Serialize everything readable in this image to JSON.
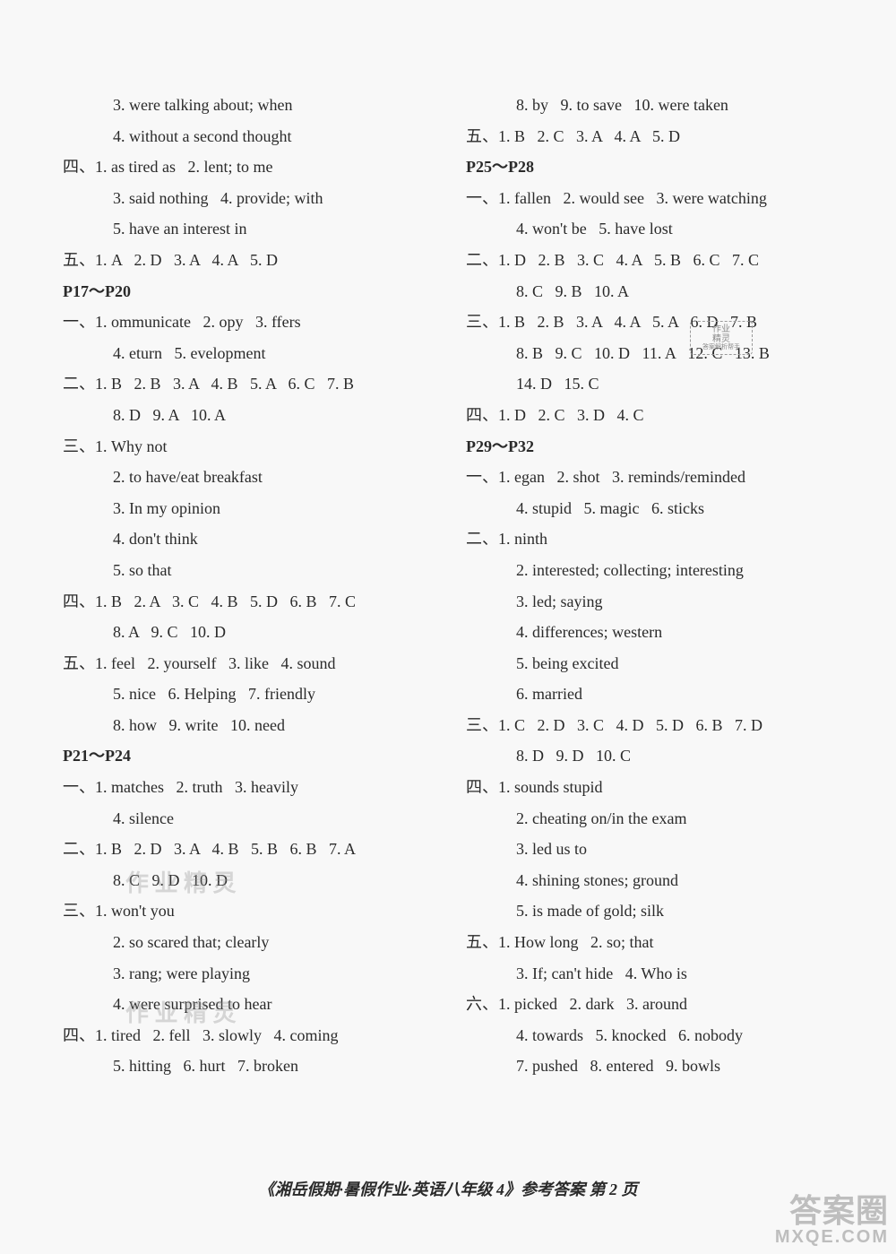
{
  "leftColumn": [
    {
      "text": "3. were talking about; when",
      "cls": "indent2"
    },
    {
      "text": "4. without a second thought",
      "cls": "indent2"
    },
    {
      "text": "四、1. as tired as   2. lent; to me",
      "cls": ""
    },
    {
      "text": "3. said nothing   4. provide; with",
      "cls": "indent2"
    },
    {
      "text": "5. have an interest in",
      "cls": "indent2"
    },
    {
      "text": "五、1. A   2. D   3. A   4. A   5. D",
      "cls": ""
    },
    {
      "text": "P17～P20",
      "cls": "bold"
    },
    {
      "text": "一、1. ommunicate   2. opy   3. ffers",
      "cls": ""
    },
    {
      "text": "4. eturn   5. evelopment",
      "cls": "indent2"
    },
    {
      "text": "二、1. B   2. B   3. A   4. B   5. A   6. C   7. B",
      "cls": ""
    },
    {
      "text": "8. D   9. A   10. A",
      "cls": "indent2"
    },
    {
      "text": "三、1. Why not",
      "cls": ""
    },
    {
      "text": "2. to have/eat breakfast",
      "cls": "indent2"
    },
    {
      "text": "3. In my opinion",
      "cls": "indent2"
    },
    {
      "text": "4. don't think",
      "cls": "indent2"
    },
    {
      "text": "5. so that",
      "cls": "indent2"
    },
    {
      "text": "四、1. B   2. A   3. C   4. B   5. D   6. B   7. C",
      "cls": ""
    },
    {
      "text": "8. A   9. C   10. D",
      "cls": "indent2"
    },
    {
      "text": "五、1. feel   2. yourself   3. like   4. sound",
      "cls": ""
    },
    {
      "text": "5. nice   6. Helping   7. friendly",
      "cls": "indent2"
    },
    {
      "text": "8. how   9. write   10. need",
      "cls": "indent2"
    },
    {
      "text": "P21～P24",
      "cls": "bold"
    },
    {
      "text": "一、1. matches   2. truth   3. heavily",
      "cls": ""
    },
    {
      "text": "4. silence",
      "cls": "indent2"
    },
    {
      "text": "二、1. B   2. D   3. A   4. B   5. B   6. B   7. A",
      "cls": ""
    },
    {
      "text": "8. C   9. D   10. D",
      "cls": "indent2"
    },
    {
      "text": "三、1. won't you",
      "cls": ""
    },
    {
      "text": "2. so scared that; clearly",
      "cls": "indent2"
    },
    {
      "text": "3. rang; were playing",
      "cls": "indent2"
    },
    {
      "text": "4. were surprised to hear",
      "cls": "indent2"
    },
    {
      "text": "四、1. tired   2. fell   3. slowly   4. coming",
      "cls": ""
    },
    {
      "text": "5. hitting   6. hurt   7. broken",
      "cls": "indent2"
    }
  ],
  "rightColumn": [
    {
      "text": "8. by   9. to save   10. were taken",
      "cls": "indent2"
    },
    {
      "text": "五、1. B   2. C   3. A   4. A   5. D",
      "cls": ""
    },
    {
      "text": "P25～P28",
      "cls": "bold"
    },
    {
      "text": "一、1. fallen   2. would see   3. were watching",
      "cls": ""
    },
    {
      "text": "4. won't be   5. have lost",
      "cls": "indent2"
    },
    {
      "text": "二、1. D   2. B   3. C   4. A   5. B   6. C   7. C",
      "cls": ""
    },
    {
      "text": "8. C   9. B   10. A",
      "cls": "indent2"
    },
    {
      "text": "三、1. B   2. B   3. A   4. A   5. A   6. D   7. B",
      "cls": ""
    },
    {
      "text": "8. B   9. C   10. D   11. A   12. C   13. B",
      "cls": "indent2"
    },
    {
      "text": "14. D   15. C",
      "cls": "indent2"
    },
    {
      "text": "四、1. D   2. C   3. D   4. C",
      "cls": ""
    },
    {
      "text": "P29～P32",
      "cls": "bold"
    },
    {
      "text": "一、1. egan   2. shot   3. reminds/reminded",
      "cls": ""
    },
    {
      "text": "4. stupid   5. magic   6. sticks",
      "cls": "indent2"
    },
    {
      "text": "二、1. ninth",
      "cls": ""
    },
    {
      "text": "2. interested; collecting; interesting",
      "cls": "indent2"
    },
    {
      "text": "3. led; saying",
      "cls": "indent2"
    },
    {
      "text": "4. differences; western",
      "cls": "indent2"
    },
    {
      "text": "5. being excited",
      "cls": "indent2"
    },
    {
      "text": "6. married",
      "cls": "indent2"
    },
    {
      "text": "三、1. C   2. D   3. C   4. D   5. D   6. B   7. D",
      "cls": ""
    },
    {
      "text": "8. D   9. D   10. C",
      "cls": "indent2"
    },
    {
      "text": "四、1. sounds stupid",
      "cls": ""
    },
    {
      "text": "2. cheating on/in the exam",
      "cls": "indent2"
    },
    {
      "text": "3. led us to",
      "cls": "indent2"
    },
    {
      "text": "4. shining stones; ground",
      "cls": "indent2"
    },
    {
      "text": "5. is made of gold; silk",
      "cls": "indent2"
    },
    {
      "text": "五、1. How long   2. so; that",
      "cls": ""
    },
    {
      "text": "3. If; can't hide   4. Who is",
      "cls": "indent2"
    },
    {
      "text": "六、1. picked   2. dark   3. around",
      "cls": ""
    },
    {
      "text": "4. towards   5. knocked   6. nobody",
      "cls": "indent2"
    },
    {
      "text": "7. pushed   8. entered   9. bowls",
      "cls": "indent2"
    }
  ],
  "footer": "《湘岳假期·暑假作业·英语八年级 4》参考答案   第 2 页",
  "watermark": {
    "big": "答案圈",
    "small": "MXQE.COM"
  },
  "badge": {
    "l1": "作业",
    "l2": "精灵",
    "l3": "答案解析帮手"
  },
  "wm_faint": "作 业 精 灵"
}
